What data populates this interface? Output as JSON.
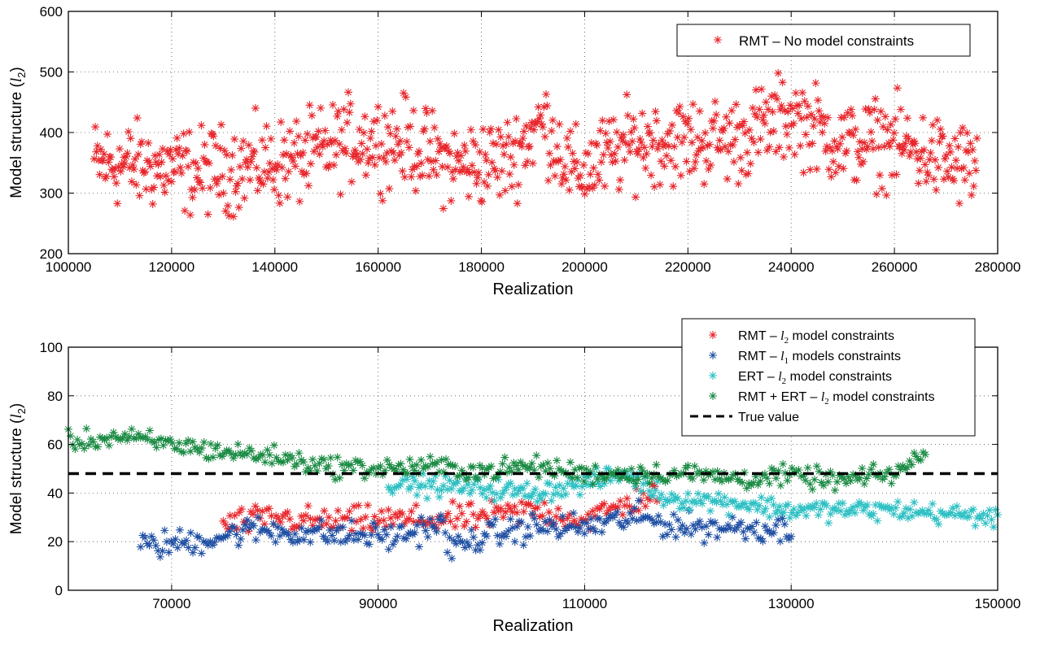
{
  "chart_data": [
    {
      "type": "scatter",
      "xlabel": "Realization",
      "ylabel_text": "Model structure (",
      "ylabel_var": "l",
      "ylabel_sub": "2",
      "ylabel_close": ")",
      "xlim": [
        100000,
        280000
      ],
      "ylim": [
        200,
        600
      ],
      "xticks": [
        100000,
        120000,
        140000,
        160000,
        180000,
        200000,
        220000,
        240000,
        260000,
        280000
      ],
      "yticks": [
        200,
        300,
        400,
        500,
        600
      ],
      "grid": true,
      "legend_position": "top-right",
      "series": [
        {
          "name": "RMT – No model constraints",
          "color": "#e8262b",
          "marker": "asterisk",
          "x_start": 105000,
          "x_end": 276000,
          "points": 800,
          "trend": [
            [
              105000,
              350
            ],
            [
              115000,
              345
            ],
            [
              125000,
              335
            ],
            [
              135000,
              345
            ],
            [
              145000,
              355
            ],
            [
              155000,
              390
            ],
            [
              165000,
              385
            ],
            [
              175000,
              345
            ],
            [
              185000,
              355
            ],
            [
              192000,
              420
            ],
            [
              198000,
              330
            ],
            [
              210000,
              385
            ],
            [
              220000,
              385
            ],
            [
              230000,
              390
            ],
            [
              240000,
              430
            ],
            [
              250000,
              380
            ],
            [
              260000,
              385
            ],
            [
              270000,
              350
            ],
            [
              276000,
              345
            ]
          ],
          "spread": 50
        }
      ]
    },
    {
      "type": "scatter",
      "xlabel": "Realization",
      "ylabel_text": "Model structure (",
      "ylabel_var": "l",
      "ylabel_sub": "2",
      "ylabel_close": ")",
      "xlim": [
        60000,
        150000
      ],
      "ylim": [
        0,
        100
      ],
      "xticks": [
        70000,
        90000,
        110000,
        130000,
        150000
      ],
      "yticks": [
        0,
        20,
        40,
        60,
        80,
        100
      ],
      "grid": true,
      "legend_position": "top-right",
      "series": [
        {
          "name_prefix": "RMT – ",
          "name_var": "l",
          "name_sub": "2",
          "name_suffix": " model constraints",
          "color": "#e8262b",
          "marker": "asterisk",
          "x_start": 75000,
          "x_end": 117000,
          "points": 190,
          "trend": [
            [
              75000,
              27
            ],
            [
              80000,
              30
            ],
            [
              85000,
              28
            ],
            [
              90000,
              29
            ],
            [
              95000,
              29
            ],
            [
              100000,
              30
            ],
            [
              105000,
              33
            ],
            [
              110000,
              29
            ],
            [
              115000,
              37
            ],
            [
              117000,
              40
            ]
          ],
          "spread": 4
        },
        {
          "name_prefix": "RMT – ",
          "name_var": "l",
          "name_sub": "1",
          "name_suffix": "  models constraints",
          "color": "#1f4fa3",
          "marker": "asterisk",
          "x_start": 67000,
          "x_end": 130000,
          "points": 300,
          "trend": [
            [
              67000,
              18
            ],
            [
              72000,
              20
            ],
            [
              78000,
              25
            ],
            [
              85000,
              23
            ],
            [
              92000,
              22
            ],
            [
              96000,
              28
            ],
            [
              97000,
              17
            ],
            [
              100000,
              22
            ],
            [
              105000,
              26
            ],
            [
              110000,
              26
            ],
            [
              115000,
              30
            ],
            [
              120000,
              26
            ],
            [
              125000,
              26
            ],
            [
              130000,
              25
            ]
          ],
          "spread": 4
        },
        {
          "name_prefix": "ERT – ",
          "name_var": "l",
          "name_sub": "2",
          "name_suffix": " model constraints",
          "color": "#2ec0c4",
          "marker": "asterisk",
          "x_start": 91000,
          "x_end": 150000,
          "points": 300,
          "trend": [
            [
              91000,
              44
            ],
            [
              100000,
              42
            ],
            [
              105000,
              40
            ],
            [
              110000,
              44
            ],
            [
              114000,
              48
            ],
            [
              118000,
              38
            ],
            [
              125000,
              36
            ],
            [
              130000,
              33
            ],
            [
              135000,
              33
            ],
            [
              140000,
              33
            ],
            [
              143000,
              32
            ],
            [
              150000,
              30
            ]
          ],
          "spread": 3
        },
        {
          "name_prefix": "RMT + ERT – ",
          "name_var": "l",
          "name_sub": "2",
          "name_suffix": " model constraints",
          "color": "#198a42",
          "marker": "asterisk",
          "x_start": 60000,
          "x_end": 143000,
          "points": 380,
          "trend": [
            [
              60000,
              61
            ],
            [
              65000,
              63
            ],
            [
              70000,
              60
            ],
            [
              75000,
              57
            ],
            [
              80000,
              55
            ],
            [
              85000,
              51
            ],
            [
              90000,
              50
            ],
            [
              95000,
              51
            ],
            [
              100000,
              49
            ],
            [
              105000,
              51
            ],
            [
              110000,
              48
            ],
            [
              115000,
              48
            ],
            [
              120000,
              48
            ],
            [
              125000,
              46
            ],
            [
              130000,
              47
            ],
            [
              135000,
              45
            ],
            [
              140000,
              48
            ],
            [
              143000,
              56
            ]
          ],
          "spread": 3
        },
        {
          "name": "True value",
          "color": "#000000",
          "style": "dashed",
          "y": 48
        }
      ]
    }
  ]
}
